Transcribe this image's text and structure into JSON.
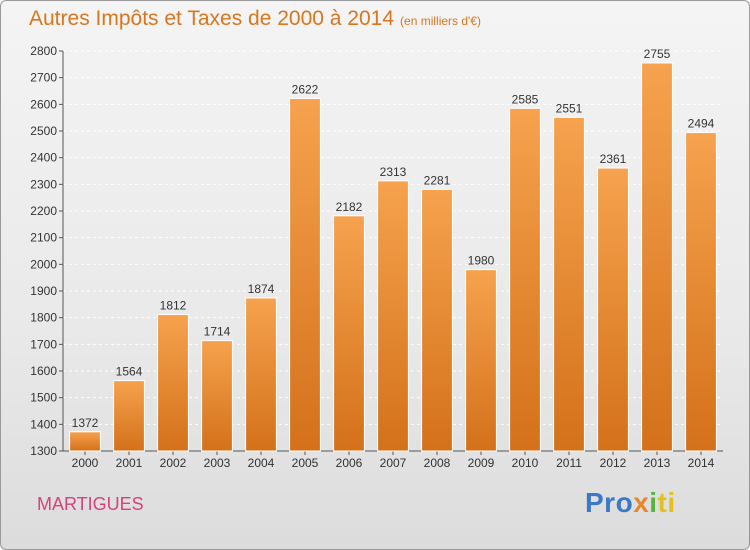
{
  "header": {
    "title": "Autres Impôts et Taxes de 2000 à 2014",
    "subtitle": "(en milliers d'€)"
  },
  "footer": {
    "city": "MARTIGUES",
    "logo_parts": [
      "Pro",
      "x",
      "i",
      "ti"
    ]
  },
  "colors": {
    "bar_light": "#f6a24e",
    "bar_dark": "#d4711a",
    "title": "#d9761e",
    "city": "#d7417c"
  },
  "chart_data": {
    "type": "bar",
    "title": "Autres Impôts et Taxes de 2000 à 2014",
    "subtitle": "(en milliers d'€)",
    "categories": [
      "2000",
      "2001",
      "2002",
      "2003",
      "2004",
      "2005",
      "2006",
      "2007",
      "2008",
      "2009",
      "2010",
      "2011",
      "2012",
      "2013",
      "2014"
    ],
    "values": [
      1372,
      1564,
      1812,
      1714,
      1874,
      2622,
      2182,
      2313,
      2281,
      1980,
      2585,
      2551,
      2361,
      2755,
      2494
    ],
    "ylim": [
      1300,
      2800
    ],
    "yticks": [
      1300,
      1400,
      1500,
      1600,
      1700,
      1800,
      1900,
      2000,
      2100,
      2200,
      2300,
      2400,
      2500,
      2600,
      2700,
      2800
    ],
    "grid": true,
    "data_labels": true
  }
}
